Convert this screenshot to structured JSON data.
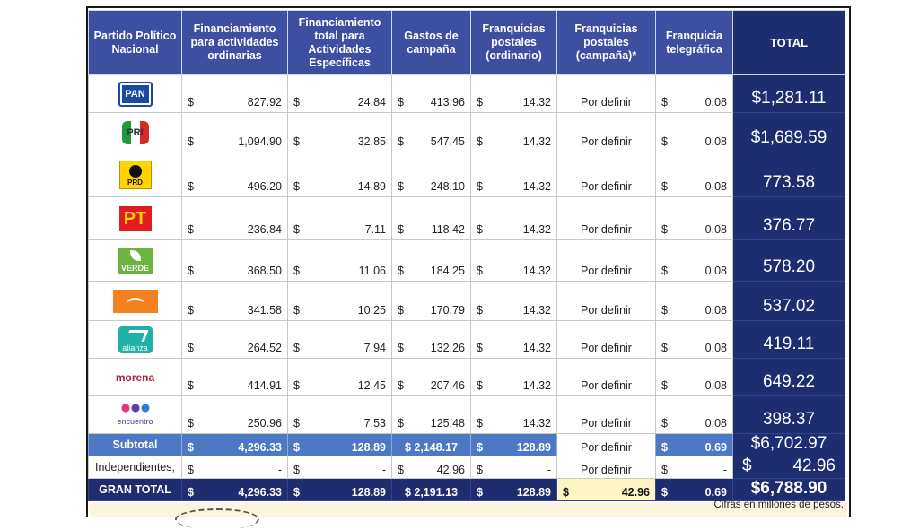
{
  "headers": {
    "partido": "Partido Político Nacional",
    "ordinarias": "Financiamiento para actividades ordinarias",
    "especificas": "Financiamiento total para Actividades Específicas",
    "gastos": "Gastos de campaña",
    "franq_ord": "Franquicias postales (ordinario)",
    "franq_camp": "Franquicias postales (campaña)*",
    "telegrafica": "Franquicia telegráfica",
    "total": "TOTAL"
  },
  "currency": "$",
  "parties": [
    {
      "logo": "pan-logo",
      "logo_text": "PAN",
      "ordinarias": "827.92",
      "especificas": "24.84",
      "gastos": "413.96",
      "franq_ord": "14.32",
      "franq_camp": "Por definir",
      "telegrafica": "0.08",
      "total": "$1,281.11"
    },
    {
      "logo": "pri-logo",
      "logo_text": "PRI",
      "ordinarias": "1,094.90",
      "especificas": "32.85",
      "gastos": "547.45",
      "franq_ord": "14.32",
      "franq_camp": "Por definir",
      "telegrafica": "0.08",
      "total": "$1,689.59"
    },
    {
      "logo": "prd-logo",
      "logo_text": "PRD",
      "ordinarias": "496.20",
      "especificas": "14.89",
      "gastos": "248.10",
      "franq_ord": "14.32",
      "franq_camp": "Por definir",
      "telegrafica": "0.08",
      "total": "773.58"
    },
    {
      "logo": "pt-logo",
      "logo_text": "PT",
      "ordinarias": "236.84",
      "especificas": "7.11",
      "gastos": "118.42",
      "franq_ord": "14.32",
      "franq_camp": "Por definir",
      "telegrafica": "0.08",
      "total": "376.77"
    },
    {
      "logo": "verde-logo",
      "logo_text": "VERDE",
      "ordinarias": "368.50",
      "especificas": "11.06",
      "gastos": "184.25",
      "franq_ord": "14.32",
      "franq_camp": "Por definir",
      "telegrafica": "0.08",
      "total": "578.20"
    },
    {
      "logo": "movimiento-ciudadano-logo",
      "logo_text": "",
      "ordinarias": "341.58",
      "especificas": "10.25",
      "gastos": "170.79",
      "franq_ord": "14.32",
      "franq_camp": "Por definir",
      "telegrafica": "0.08",
      "total": "537.02"
    },
    {
      "logo": "nueva-alianza-logo",
      "logo_text": "alianza",
      "ordinarias": "264.52",
      "especificas": "7.94",
      "gastos": "132.26",
      "franq_ord": "14.32",
      "franq_camp": "Por definir",
      "telegrafica": "0.08",
      "total": "419.11"
    },
    {
      "logo": "morena-logo",
      "logo_text": "morena",
      "ordinarias": "414.91",
      "especificas": "12.45",
      "gastos": "207.46",
      "franq_ord": "14.32",
      "franq_camp": "Por definir",
      "telegrafica": "0.08",
      "total": "649.22"
    },
    {
      "logo": "encuentro-social-logo",
      "logo_text": "encuentro",
      "ordinarias": "250.96",
      "especificas": "7.53",
      "gastos": "125.48",
      "franq_ord": "14.32",
      "franq_camp": "Por definir",
      "telegrafica": "0.08",
      "total": "398.37"
    }
  ],
  "subtotal": {
    "label": "Subtotal",
    "ordinarias": "4,296.33",
    "especificas": "128.89",
    "gastos": "$ 2,148.17",
    "franq_ord": "128.89",
    "franq_camp": "Por definir",
    "telegrafica": "0.69",
    "total": "$6,702.97"
  },
  "independientes": {
    "label": "Independientes,",
    "ordinarias": "-",
    "especificas": "-",
    "gastos": "42.96",
    "franq_ord": "-",
    "franq_camp": "Por definir",
    "telegrafica": "-",
    "total": "42.96"
  },
  "gran_total": {
    "label": "GRAN TOTAL",
    "ordinarias": "4,296.33",
    "especificas": "128.89",
    "gastos": "$ 2,191.13",
    "franq_ord": "128.89",
    "franq_camp": "42.96",
    "telegrafica": "0.69",
    "total": "$6,788.90"
  },
  "caption": "Cifras en millones de pesos.",
  "colors": {
    "header_blue": "#3d4fa0",
    "total_navy": "#1e2d70",
    "subtotal_blue": "#4d79c4",
    "highlight_yellow": "#fff4c4"
  }
}
